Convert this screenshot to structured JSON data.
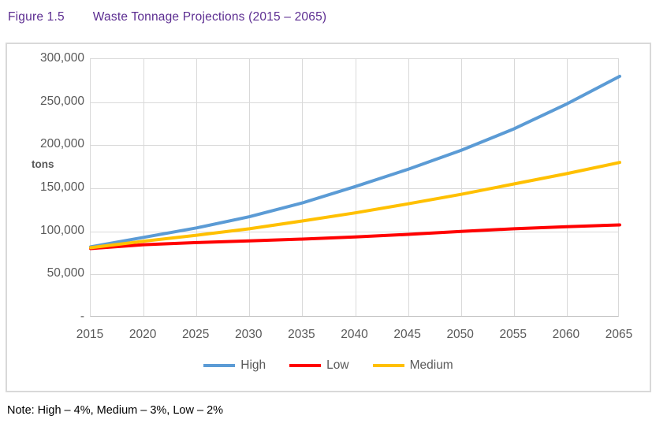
{
  "title": {
    "prefix": "Figure 1.5",
    "text": "Waste Tonnage Projections (2015 – 2065)"
  },
  "note": "Note: High – 4%, Medium – 3%, Low – 2%",
  "colors": {
    "title_text": "#5c2d91",
    "axis_text": "#595959",
    "gridline": "#d9d9d9",
    "axis_line": "#bfbfbf",
    "high": "#5b9bd5",
    "low": "#ff0000",
    "medium": "#ffc000"
  },
  "chart_data": {
    "type": "line",
    "title": "Waste Tonnage Projections (2015 – 2065)",
    "xlabel": "",
    "ylabel": "tons",
    "ylim": [
      0,
      300000
    ],
    "grid": true,
    "legend_position": "bottom",
    "x": [
      2015,
      2020,
      2025,
      2030,
      2035,
      2040,
      2045,
      2050,
      2055,
      2060,
      2065
    ],
    "x_tick_labels": [
      "2015",
      "2020",
      "2025",
      "2030",
      "2035",
      "2040",
      "2045",
      "2050",
      "2055",
      "2060",
      "2065"
    ],
    "y_tick_values": [
      300000,
      250000,
      200000,
      150000,
      100000,
      50000,
      0
    ],
    "y_tick_labels": [
      "300,000",
      "250,000",
      "200,000",
      "150,000",
      "100,000",
      "50,000",
      "-"
    ],
    "series": [
      {
        "name": "High",
        "color": "#5b9bd5",
        "values": [
          82000,
          93000,
          104000,
          117000,
          133000,
          152000,
          172000,
          194000,
          219000,
          248000,
          280000
        ]
      },
      {
        "name": "Low",
        "color": "#ff0000",
        "values": [
          80000,
          84500,
          87000,
          89000,
          91000,
          93500,
          96500,
          100000,
          103000,
          105500,
          107500
        ]
      },
      {
        "name": "Medium",
        "color": "#ffc000",
        "values": [
          81000,
          88500,
          95500,
          103000,
          112000,
          121500,
          132000,
          143000,
          155000,
          167000,
          180000
        ]
      }
    ],
    "legend": [
      "High",
      "Low",
      "Medium"
    ]
  }
}
